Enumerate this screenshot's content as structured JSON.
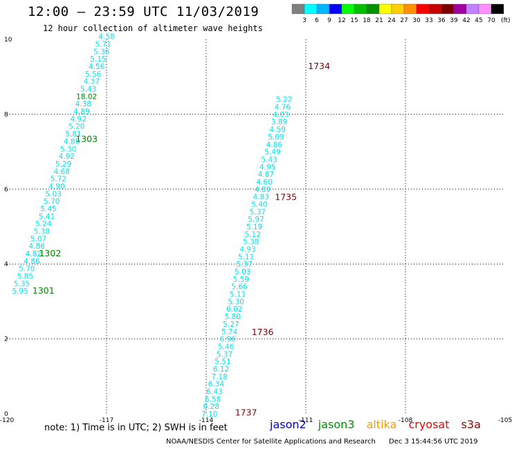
{
  "header": {
    "title": "12:00 — 23:59 UTC 11/03/2019",
    "subtitle": "12 hour collection of altimeter wave heights"
  },
  "colorbar": {
    "unit": "(ft)",
    "labels": [
      "3",
      "6",
      "9",
      "12",
      "15",
      "18",
      "21",
      "24",
      "27",
      "30",
      "33",
      "36",
      "39",
      "42",
      "45",
      "70"
    ],
    "colors": [
      "#808080",
      "#00ffff",
      "#00b4ff",
      "#0000ff",
      "#00ff00",
      "#00c000",
      "#009000",
      "#ffff00",
      "#ffd000",
      "#ff9000",
      "#ff0000",
      "#c80000",
      "#800000",
      "#a000a0",
      "#c080ff",
      "#ff90ff",
      "#000000"
    ]
  },
  "chart_data": {
    "type": "scatter",
    "xlim": [
      -120,
      -105
    ],
    "ylim": [
      0,
      10
    ],
    "xticks": [
      "-120",
      "-117",
      "-114",
      "-111",
      "-108",
      "-105"
    ],
    "yticks": [
      "0",
      "2",
      "4",
      "6",
      "8",
      "10"
    ],
    "grid": true,
    "series": [
      {
        "name": "jason3",
        "color": "#00e5ee",
        "points": [
          {
            "x": -119.6,
            "y": 3.28,
            "v": "5.95"
          },
          {
            "x": -119.55,
            "y": 3.48,
            "v": "5.35"
          },
          {
            "x": -119.45,
            "y": 3.68,
            "v": "5.85"
          },
          {
            "x": -119.4,
            "y": 3.88,
            "v": "5.70"
          },
          {
            "x": -119.25,
            "y": 4.08,
            "v": "4.86"
          },
          {
            "x": -119.2,
            "y": 4.28,
            "v": "4.82"
          },
          {
            "x": -119.1,
            "y": 4.48,
            "v": "4.86"
          },
          {
            "x": -119.05,
            "y": 4.68,
            "v": "5.07"
          },
          {
            "x": -118.95,
            "y": 4.88,
            "v": "5.38"
          },
          {
            "x": -118.9,
            "y": 5.08,
            "v": "5.24"
          },
          {
            "x": -118.8,
            "y": 5.28,
            "v": "5.41"
          },
          {
            "x": -118.75,
            "y": 5.48,
            "v": "5.45"
          },
          {
            "x": -118.65,
            "y": 5.68,
            "v": "5.70"
          },
          {
            "x": -118.6,
            "y": 5.88,
            "v": "5.03"
          },
          {
            "x": -118.5,
            "y": 6.08,
            "v": "4.90"
          },
          {
            "x": -118.45,
            "y": 6.28,
            "v": "5.72"
          },
          {
            "x": -118.35,
            "y": 6.48,
            "v": "4.68"
          },
          {
            "x": -118.3,
            "y": 6.68,
            "v": "5.29"
          },
          {
            "x": -118.2,
            "y": 6.88,
            "v": "4.92"
          },
          {
            "x": -118.15,
            "y": 7.08,
            "v": "5.30"
          },
          {
            "x": -118.05,
            "y": 7.28,
            "v": "4.88"
          },
          {
            "x": -118.0,
            "y": 7.48,
            "v": "5.81"
          },
          {
            "x": -117.9,
            "y": 7.68,
            "v": "5.20"
          },
          {
            "x": -117.85,
            "y": 7.88,
            "v": "4.92"
          },
          {
            "x": -117.75,
            "y": 8.08,
            "v": "4.89"
          },
          {
            "x": -117.7,
            "y": 8.28,
            "v": "4.38"
          },
          {
            "x": -117.6,
            "y": 8.48,
            "v": "18.02",
            "color": "#008000"
          },
          {
            "x": -117.55,
            "y": 8.68,
            "v": "5.43"
          },
          {
            "x": -117.45,
            "y": 8.88,
            "v": "4.37"
          },
          {
            "x": -117.4,
            "y": 9.08,
            "v": "5.56"
          },
          {
            "x": -117.3,
            "y": 9.28,
            "v": "4.56"
          },
          {
            "x": -117.25,
            "y": 9.48,
            "v": "5.15"
          },
          {
            "x": -117.15,
            "y": 9.68,
            "v": "5.36"
          },
          {
            "x": -117.1,
            "y": 9.88,
            "v": "5.71"
          },
          {
            "x": -117.0,
            "y": 10.08,
            "v": "4.58"
          }
        ]
      },
      {
        "name": "jason2",
        "color": "#00e5ee",
        "points": [
          {
            "x": -113.9,
            "y": 0.0,
            "v": "7.10"
          },
          {
            "x": -113.85,
            "y": 0.2,
            "v": "6.28"
          },
          {
            "x": -113.8,
            "y": 0.4,
            "v": "6.58"
          },
          {
            "x": -113.75,
            "y": 0.6,
            "v": "6.43"
          },
          {
            "x": -113.7,
            "y": 0.8,
            "v": "6.34"
          },
          {
            "x": -113.6,
            "y": 1.0,
            "v": "7.18"
          },
          {
            "x": -113.55,
            "y": 1.2,
            "v": "6.12"
          },
          {
            "x": -113.5,
            "y": 1.4,
            "v": "5.51"
          },
          {
            "x": -113.45,
            "y": 1.6,
            "v": "5.37"
          },
          {
            "x": -113.4,
            "y": 1.8,
            "v": "5.46"
          },
          {
            "x": -113.35,
            "y": 2.0,
            "v": "6.96"
          },
          {
            "x": -113.3,
            "y": 2.2,
            "v": "5.74"
          },
          {
            "x": -113.25,
            "y": 2.4,
            "v": "5.27"
          },
          {
            "x": -113.2,
            "y": 2.6,
            "v": "5.80"
          },
          {
            "x": -113.15,
            "y": 2.8,
            "v": "6.02"
          },
          {
            "x": -113.1,
            "y": 3.0,
            "v": "5.30"
          },
          {
            "x": -113.05,
            "y": 3.2,
            "v": "5.11"
          },
          {
            "x": -113.0,
            "y": 3.4,
            "v": "5.66"
          },
          {
            "x": -112.95,
            "y": 3.6,
            "v": "5.59"
          },
          {
            "x": -112.9,
            "y": 3.8,
            "v": "5.03"
          },
          {
            "x": -112.85,
            "y": 4.0,
            "v": "5.37"
          },
          {
            "x": -112.8,
            "y": 4.2,
            "v": "5.11"
          },
          {
            "x": -112.75,
            "y": 4.4,
            "v": "4.93"
          },
          {
            "x": -112.65,
            "y": 4.6,
            "v": "5.38"
          },
          {
            "x": -112.6,
            "y": 4.8,
            "v": "5.12"
          },
          {
            "x": -112.55,
            "y": 5.0,
            "v": "5.19"
          },
          {
            "x": -112.5,
            "y": 5.2,
            "v": "5.97"
          },
          {
            "x": -112.45,
            "y": 5.4,
            "v": "5.37"
          },
          {
            "x": -112.4,
            "y": 5.6,
            "v": "5.40"
          },
          {
            "x": -112.35,
            "y": 5.8,
            "v": "4.83"
          },
          {
            "x": -112.3,
            "y": 6.0,
            "v": "4.89"
          },
          {
            "x": -112.25,
            "y": 6.2,
            "v": "4.60"
          },
          {
            "x": -112.2,
            "y": 6.4,
            "v": "4.87"
          },
          {
            "x": -112.15,
            "y": 6.6,
            "v": "4.95"
          },
          {
            "x": -112.1,
            "y": 6.8,
            "v": "5.43"
          },
          {
            "x": -112.0,
            "y": 7.0,
            "v": "5.49"
          },
          {
            "x": -111.95,
            "y": 7.2,
            "v": "4.86"
          },
          {
            "x": -111.9,
            "y": 7.4,
            "v": "5.09"
          },
          {
            "x": -111.85,
            "y": 7.6,
            "v": "4.59"
          },
          {
            "x": -111.8,
            "y": 7.8,
            "v": "3.89"
          },
          {
            "x": -111.75,
            "y": 8.0,
            "v": "4.03"
          },
          {
            "x": -111.7,
            "y": 8.2,
            "v": "4.76"
          },
          {
            "x": -111.65,
            "y": 8.4,
            "v": "5.22"
          }
        ]
      }
    ],
    "time_labels": [
      {
        "x": -118.9,
        "y": 3.3,
        "v": "1301",
        "color": "#008000"
      },
      {
        "x": -118.7,
        "y": 4.3,
        "v": "1302",
        "color": "#008000"
      },
      {
        "x": -117.6,
        "y": 7.35,
        "v": "1303",
        "color": "#008000"
      },
      {
        "x": -112.8,
        "y": 0.05,
        "v": "1737",
        "color": "#800000"
      },
      {
        "x": -112.3,
        "y": 2.2,
        "v": "1736",
        "color": "#800000"
      },
      {
        "x": -111.6,
        "y": 5.8,
        "v": "1735",
        "color": "#800000"
      },
      {
        "x": -110.6,
        "y": 9.3,
        "v": "1734",
        "color": "#800000"
      }
    ]
  },
  "note": "note:  1) Time is in UTC;  2) SWH is in feet",
  "satellites": [
    {
      "name": "jason2",
      "color": "#0000cc"
    },
    {
      "name": "jason3",
      "color": "#009000"
    },
    {
      "name": "altika",
      "color": "#ff9900"
    },
    {
      "name": "cryosat",
      "color": "#ee0000"
    },
    {
      "name": "s3a",
      "color": "#990000"
    }
  ],
  "footer": {
    "credit": "NOAA/NESDIS Center for Satellite Applications and Research",
    "timestamp": "Dec  3 15:44:56 UTC 2019"
  }
}
